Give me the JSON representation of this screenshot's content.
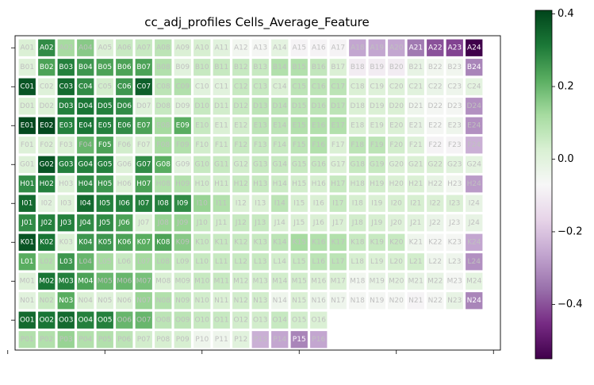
{
  "chart_data": {
    "type": "heatmap",
    "title": "cc_adj_profiles Cells_Average_Feature",
    "rows": [
      "A",
      "B",
      "C",
      "D",
      "E",
      "F",
      "G",
      "H",
      "I",
      "J",
      "K",
      "L",
      "M",
      "N",
      "O",
      "P"
    ],
    "columns": [
      "01",
      "02",
      "03",
      "04",
      "05",
      "06",
      "07",
      "08",
      "09",
      "10",
      "11",
      "12",
      "13",
      "14",
      "15",
      "16",
      "17",
      "18",
      "19",
      "20",
      "21",
      "22",
      "23",
      "24"
    ],
    "values": [
      [
        0.02,
        0.28,
        0.12,
        0.16,
        0.02,
        0.06,
        0.06,
        0.08,
        0.02,
        0.03,
        0.0,
        -0.05,
        -0.06,
        -0.01,
        -0.08,
        -0.08,
        -0.08,
        -0.26,
        -0.26,
        -0.26,
        -0.34,
        -0.4,
        -0.42,
        -0.56
      ],
      [
        0.01,
        0.24,
        0.3,
        0.26,
        0.24,
        0.24,
        0.24,
        0.1,
        0.0,
        0.06,
        0.06,
        0.06,
        0.06,
        0.1,
        0.1,
        0.07,
        0.02,
        -0.1,
        -0.1,
        -0.1,
        -0.02,
        -0.05,
        -0.05,
        -0.32
      ],
      [
        0.38,
        0.01,
        0.34,
        0.28,
        0.04,
        0.26,
        0.36,
        0.08,
        0.1,
        0.0,
        0.0,
        0.06,
        0.06,
        0.02,
        0.08,
        0.08,
        0.08,
        0.02,
        0.01,
        0.01,
        0.0,
        -0.03,
        -0.04,
        -0.01
      ],
      [
        0.02,
        0.02,
        0.3,
        0.32,
        0.3,
        0.28,
        0.01,
        0.06,
        0.01,
        0.06,
        0.04,
        0.06,
        0.08,
        0.08,
        0.08,
        0.08,
        0.08,
        0.02,
        0.02,
        0.02,
        -0.04,
        -0.06,
        -0.06,
        -0.3
      ],
      [
        0.4,
        0.4,
        0.3,
        0.32,
        0.3,
        0.28,
        0.24,
        0.12,
        0.22,
        0.06,
        0.02,
        0.04,
        0.08,
        0.08,
        0.1,
        0.1,
        0.1,
        0.02,
        0.02,
        0.02,
        -0.02,
        -0.06,
        -0.04,
        -0.3
      ],
      [
        0.01,
        0.02,
        0.02,
        0.2,
        0.24,
        0.04,
        0.02,
        0.12,
        0.1,
        0.04,
        0.04,
        0.06,
        0.06,
        0.06,
        0.08,
        0.1,
        0.02,
        0.08,
        0.08,
        0.04,
        0.01,
        -0.08,
        -0.08,
        -0.24
      ],
      [
        0.01,
        0.38,
        0.3,
        0.3,
        0.3,
        0.01,
        0.28,
        0.22,
        0.0,
        0.06,
        0.06,
        0.04,
        0.06,
        0.06,
        0.06,
        0.06,
        0.02,
        0.06,
        0.06,
        0.02,
        0.02,
        0.02,
        0.0,
        -0.01
      ],
      [
        0.28,
        0.3,
        0.01,
        0.28,
        0.26,
        0.02,
        0.24,
        0.1,
        0.1,
        0.04,
        0.04,
        0.06,
        0.06,
        0.05,
        0.04,
        0.03,
        0.06,
        0.04,
        0.04,
        0.02,
        0.02,
        -0.02,
        -0.05,
        -0.28
      ],
      [
        0.34,
        0.0,
        0.01,
        0.34,
        0.3,
        0.3,
        0.3,
        0.3,
        0.28,
        0.14,
        0.1,
        0.02,
        0.02,
        0.08,
        0.03,
        0.02,
        0.06,
        0.03,
        0.02,
        0.03,
        0.03,
        0.02,
        0.02,
        -0.02
      ],
      [
        0.28,
        0.3,
        0.3,
        0.28,
        0.28,
        0.24,
        0.02,
        0.14,
        0.14,
        0.06,
        0.04,
        0.06,
        0.06,
        0.02,
        0.02,
        0.02,
        0.02,
        0.04,
        0.03,
        0.01,
        0.0,
        -0.03,
        -0.05,
        -0.02
      ],
      [
        0.38,
        0.32,
        0.02,
        0.26,
        0.26,
        0.24,
        0.22,
        0.24,
        0.16,
        0.06,
        0.06,
        0.06,
        0.06,
        0.08,
        0.12,
        0.1,
        0.1,
        0.06,
        0.06,
        0.06,
        -0.04,
        -0.06,
        -0.06,
        -0.26
      ],
      [
        0.22,
        0.1,
        0.26,
        0.2,
        0.12,
        0.06,
        0.12,
        0.1,
        0.06,
        0.06,
        0.06,
        0.06,
        0.06,
        0.04,
        0.06,
        0.08,
        0.08,
        0.03,
        0.02,
        0.03,
        0.04,
        -0.04,
        -0.04,
        -0.3
      ],
      [
        0.01,
        0.32,
        0.3,
        0.24,
        0.2,
        0.2,
        0.18,
        0.02,
        0.04,
        0.06,
        0.06,
        0.04,
        0.04,
        0.04,
        0.04,
        0.02,
        0.02,
        -0.05,
        -0.02,
        -0.01,
        -0.02,
        -0.02,
        -0.06,
        -0.01
      ],
      [
        0.0,
        0.06,
        0.22,
        0.02,
        0.01,
        0.02,
        0.14,
        0.1,
        0.06,
        0.04,
        0.02,
        0.04,
        0.04,
        -0.04,
        0.02,
        -0.03,
        -0.04,
        -0.06,
        -0.06,
        -0.06,
        -0.08,
        -0.06,
        -0.02,
        -0.32
      ],
      [
        0.34,
        0.32,
        0.34,
        0.3,
        0.3,
        0.2,
        0.2,
        0.08,
        0.08,
        0.06,
        0.06,
        0.04,
        0.04,
        0.06,
        0.04,
        0.02,
        null,
        null,
        null,
        null,
        null,
        null,
        null,
        null
      ],
      [
        0.1,
        0.1,
        0.14,
        0.1,
        0.1,
        0.08,
        0.04,
        0.03,
        0.03,
        -0.04,
        -0.04,
        0.0,
        -0.24,
        -0.26,
        -0.32,
        -0.26,
        null,
        null,
        null,
        null,
        null,
        null,
        null,
        null
      ]
    ],
    "vmin": -0.55,
    "vmax": 0.41,
    "colormap": "PRGn",
    "colorbar_ticks": [
      -0.4,
      -0.2,
      0.0,
      0.2,
      0.4
    ],
    "colorbar_tick_labels": [
      "−0.4",
      "−0.2",
      "0.0",
      "0.2",
      "0.4"
    ],
    "grid": false,
    "legend": "colorbar-right"
  }
}
